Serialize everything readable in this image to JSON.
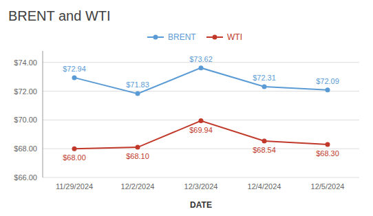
{
  "chart_data": {
    "type": "line",
    "title": "BRENT and WTI",
    "x_label": "DATE",
    "categories": [
      "11/29/2024",
      "12/2/2024",
      "12/3/2024",
      "12/4/2024",
      "12/5/2024"
    ],
    "series": [
      {
        "name": "BRENT",
        "color": "#5B9BD5",
        "marker": "circle",
        "values": [
          72.94,
          71.83,
          73.62,
          72.31,
          72.09
        ],
        "value_labels": [
          "$72.94",
          "$71.83",
          "$73.62",
          "$72.31",
          "$72.09"
        ]
      },
      {
        "name": "WTI",
        "color": "#C0392B",
        "marker": "circle",
        "values": [
          68.0,
          68.1,
          69.94,
          68.54,
          68.3
        ],
        "value_labels": [
          "$68.00",
          "$68.10",
          "$69.94",
          "$68.54",
          "$68.30"
        ]
      }
    ],
    "ylim": [
      66.0,
      74.8
    ],
    "yticks": [
      {
        "value": 66.0,
        "label": "$66.00"
      },
      {
        "value": 68.0,
        "label": "$68.00"
      },
      {
        "value": 70.0,
        "label": "$70.00"
      },
      {
        "value": 72.0,
        "label": "$72.00"
      },
      {
        "value": 74.0,
        "label": "$74.00"
      }
    ],
    "grid": true,
    "legend": "top",
    "data_labels": true
  }
}
